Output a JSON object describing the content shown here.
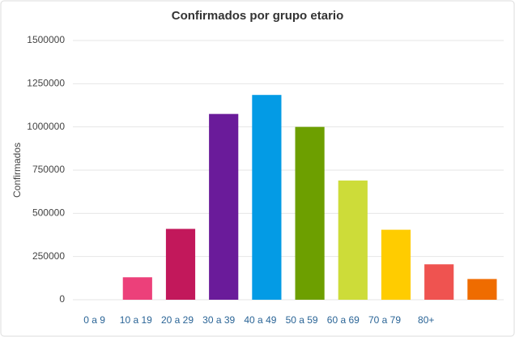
{
  "chart_data": {
    "type": "bar",
    "title": "Confirmados por grupo etario",
    "y_label": "Confirmados",
    "categories": [
      "0 a 9",
      "10 a 19",
      "20 a 29",
      "30 a 39",
      "40 a 49",
      "50 a 59",
      "60 a 69",
      "70 a 79",
      "80+",
      null
    ],
    "values": [
      0,
      130000,
      410000,
      1075000,
      1185000,
      1000000,
      690000,
      405000,
      205000,
      120000
    ],
    "colors": [
      "#9e9e9e",
      "#ec407a",
      "#c2185b",
      "#6a1b9a",
      "#039be5",
      "#6d9f00",
      "#cddc39",
      "#ffcc00",
      "#ef5350",
      "#ef6c00"
    ],
    "ylim": [
      0,
      1500000
    ],
    "yticks": [
      0,
      250000,
      500000,
      750000,
      1000000,
      1250000,
      1500000
    ],
    "grid": true
  }
}
